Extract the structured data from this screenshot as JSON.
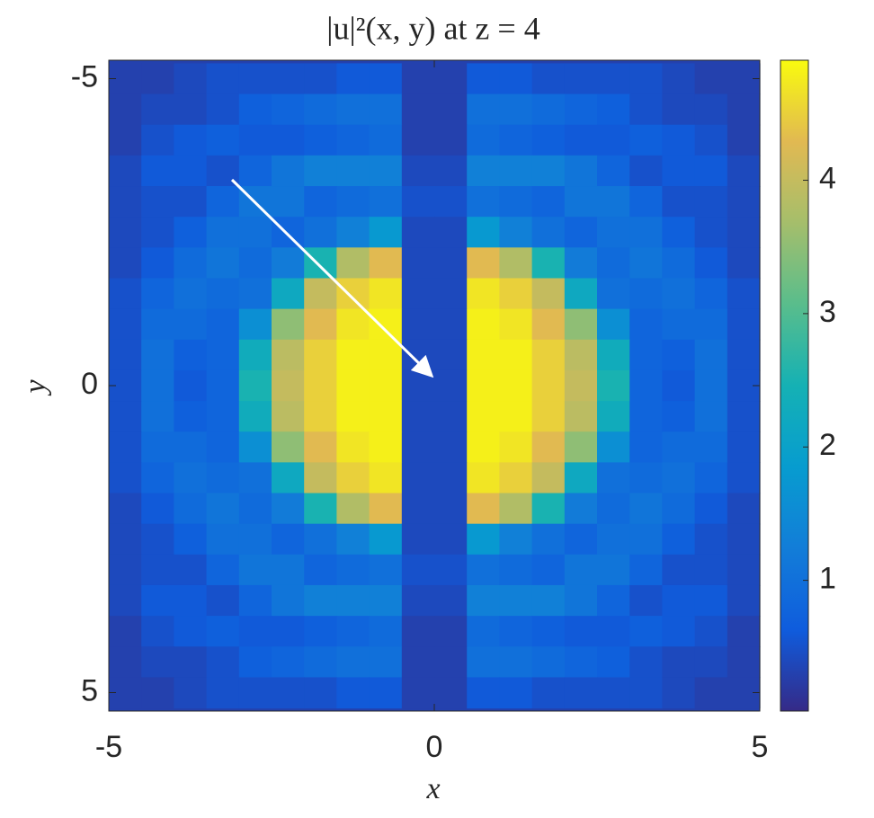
{
  "chart_data": {
    "type": "heatmap",
    "title": "|u|²(x, y) at z = 4",
    "xlabel": "x",
    "ylabel": "y",
    "x": [
      -4.75,
      -4.25,
      -3.75,
      -3.25,
      -2.75,
      -2.25,
      -1.75,
      -1.25,
      -0.75,
      -0.25,
      0.25,
      0.75,
      1.25,
      1.75,
      2.25,
      2.75,
      3.25,
      3.75,
      4.25,
      4.75
    ],
    "y": [
      -5,
      -4.5,
      -4,
      -3.5,
      -3,
      -2.5,
      -2,
      -1.5,
      -1,
      -0.5,
      0,
      0.5,
      1,
      1.5,
      2,
      2.5,
      3,
      3.5,
      4,
      4.5,
      5
    ],
    "z": [
      [
        0.3,
        0.3,
        0.4,
        0.5,
        0.5,
        0.5,
        0.5,
        0.6,
        0.6,
        0.3,
        0.3,
        0.6,
        0.6,
        0.5,
        0.5,
        0.5,
        0.5,
        0.4,
        0.3,
        0.3
      ],
      [
        0.3,
        0.4,
        0.4,
        0.5,
        0.7,
        0.8,
        0.9,
        1.0,
        1.0,
        0.3,
        0.3,
        1.0,
        1.0,
        0.9,
        0.8,
        0.7,
        0.5,
        0.4,
        0.4,
        0.3
      ],
      [
        0.3,
        0.5,
        0.6,
        0.7,
        0.6,
        0.6,
        0.7,
        0.8,
        0.9,
        0.3,
        0.3,
        0.9,
        0.8,
        0.7,
        0.6,
        0.6,
        0.7,
        0.6,
        0.5,
        0.3
      ],
      [
        0.4,
        0.6,
        0.6,
        0.5,
        0.8,
        1.1,
        1.3,
        1.3,
        1.3,
        0.4,
        0.4,
        1.3,
        1.3,
        1.3,
        1.1,
        0.8,
        0.5,
        0.6,
        0.6,
        0.4
      ],
      [
        0.4,
        0.5,
        0.5,
        0.8,
        1.1,
        1.1,
        0.8,
        0.9,
        1.0,
        0.5,
        0.5,
        1.0,
        0.9,
        0.8,
        1.1,
        1.1,
        0.8,
        0.5,
        0.5,
        0.4
      ],
      [
        0.4,
        0.5,
        0.7,
        1.0,
        1.0,
        0.8,
        1.0,
        1.3,
        1.8,
        0.4,
        0.4,
        1.8,
        1.3,
        1.0,
        0.8,
        1.0,
        1.0,
        0.7,
        0.5,
        0.4
      ],
      [
        0.4,
        0.6,
        0.9,
        1.1,
        0.9,
        1.2,
        2.5,
        3.8,
        4.3,
        0.4,
        0.4,
        4.3,
        3.8,
        2.5,
        1.2,
        0.9,
        1.1,
        0.9,
        0.6,
        0.4
      ],
      [
        0.5,
        0.8,
        1.0,
        0.9,
        1.0,
        2.2,
        4.0,
        4.5,
        4.7,
        0.4,
        0.4,
        4.7,
        4.5,
        4.0,
        2.2,
        1.0,
        0.9,
        1.0,
        0.8,
        0.5
      ],
      [
        0.5,
        0.9,
        0.9,
        0.8,
        1.6,
        3.5,
        4.3,
        4.7,
        4.8,
        0.4,
        0.4,
        4.8,
        4.7,
        4.3,
        3.5,
        1.6,
        0.8,
        0.9,
        0.9,
        0.5
      ],
      [
        0.5,
        1.0,
        0.7,
        0.8,
        2.3,
        3.9,
        4.5,
        4.8,
        4.8,
        0.4,
        0.4,
        4.8,
        4.8,
        4.5,
        3.9,
        2.3,
        0.8,
        0.7,
        1.0,
        0.5
      ],
      [
        0.5,
        1.0,
        0.6,
        0.8,
        2.5,
        4.0,
        4.5,
        4.8,
        4.8,
        0.4,
        0.4,
        4.8,
        4.8,
        4.5,
        4.0,
        2.5,
        0.8,
        0.6,
        1.0,
        0.5
      ],
      [
        0.5,
        1.0,
        0.7,
        0.8,
        2.3,
        3.9,
        4.5,
        4.8,
        4.8,
        0.4,
        0.4,
        4.8,
        4.8,
        4.5,
        3.9,
        2.3,
        0.8,
        0.7,
        1.0,
        0.5
      ],
      [
        0.5,
        0.9,
        0.9,
        0.8,
        1.6,
        3.5,
        4.3,
        4.7,
        4.8,
        0.4,
        0.4,
        4.8,
        4.7,
        4.3,
        3.5,
        1.6,
        0.8,
        0.9,
        0.9,
        0.5
      ],
      [
        0.5,
        0.8,
        1.0,
        0.9,
        1.0,
        2.2,
        4.0,
        4.5,
        4.7,
        0.4,
        0.4,
        4.7,
        4.5,
        4.0,
        2.2,
        1.0,
        0.9,
        1.0,
        0.8,
        0.5
      ],
      [
        0.4,
        0.6,
        0.9,
        1.1,
        0.9,
        1.2,
        2.5,
        3.8,
        4.3,
        0.4,
        0.4,
        4.3,
        3.8,
        2.5,
        1.2,
        0.9,
        1.1,
        0.9,
        0.6,
        0.4
      ],
      [
        0.4,
        0.5,
        0.7,
        1.0,
        1.0,
        0.8,
        1.0,
        1.3,
        1.8,
        0.4,
        0.4,
        1.8,
        1.3,
        1.0,
        0.8,
        1.0,
        1.0,
        0.7,
        0.5,
        0.4
      ],
      [
        0.4,
        0.5,
        0.5,
        0.8,
        1.1,
        1.1,
        0.8,
        0.9,
        1.0,
        0.5,
        0.5,
        1.0,
        0.9,
        0.8,
        1.1,
        1.1,
        0.8,
        0.5,
        0.5,
        0.4
      ],
      [
        0.4,
        0.6,
        0.6,
        0.5,
        0.8,
        1.1,
        1.3,
        1.3,
        1.3,
        0.4,
        0.4,
        1.3,
        1.3,
        1.3,
        1.1,
        0.8,
        0.5,
        0.6,
        0.6,
        0.4
      ],
      [
        0.3,
        0.5,
        0.6,
        0.7,
        0.6,
        0.6,
        0.7,
        0.8,
        0.9,
        0.3,
        0.3,
        0.9,
        0.8,
        0.7,
        0.6,
        0.6,
        0.7,
        0.6,
        0.5,
        0.3
      ],
      [
        0.3,
        0.4,
        0.4,
        0.5,
        0.7,
        0.8,
        0.9,
        1.0,
        1.0,
        0.3,
        0.3,
        1.0,
        1.0,
        0.9,
        0.8,
        0.7,
        0.5,
        0.4,
        0.4,
        0.3
      ],
      [
        0.3,
        0.3,
        0.4,
        0.5,
        0.5,
        0.5,
        0.5,
        0.6,
        0.6,
        0.3,
        0.3,
        0.6,
        0.6,
        0.5,
        0.5,
        0.5,
        0.5,
        0.4,
        0.3,
        0.3
      ]
    ],
    "xlim": [
      -5,
      5
    ],
    "ylim": [
      -5.3,
      5.3
    ],
    "y_reversed": true,
    "xticks": [
      -5,
      0,
      5
    ],
    "yticks": [
      -5,
      0,
      5
    ],
    "colormap": "parula",
    "clim": [
      0.02,
      4.9
    ],
    "colorbar_ticks": [
      1,
      2,
      3,
      4
    ]
  }
}
